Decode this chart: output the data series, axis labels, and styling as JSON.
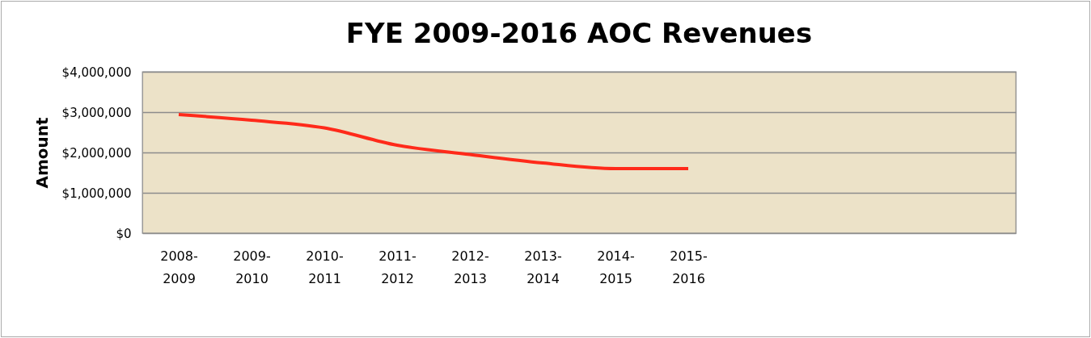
{
  "chart_data": {
    "type": "line",
    "title": "FYE 2009-2016 AOC Revenues",
    "ylabel": "Amount",
    "categories": [
      "2008-2009",
      "2009-2010",
      "2010-2011",
      "2011-2012",
      "2012-2013",
      "2013-2014",
      "2014-2015",
      "2015-2016",
      null,
      null,
      null,
      null
    ],
    "series": [
      {
        "color": "#ff2a1a",
        "values": [
          2940000,
          2800000,
          2610000,
          2180000,
          1950000,
          1740000,
          1600000,
          1600000,
          null,
          null,
          null,
          null
        ]
      }
    ],
    "ylim": [
      0,
      4000000
    ],
    "yticks": [
      {
        "value": 0,
        "label": "$0"
      },
      {
        "value": 1000000,
        "label": "$1,000,000"
      },
      {
        "value": 2000000,
        "label": "$2,000,000"
      },
      {
        "value": 3000000,
        "label": "$3,000,000"
      },
      {
        "value": 4000000,
        "label": "$4,000,000"
      }
    ],
    "grid": "y",
    "marker": "none",
    "line_style": "solid"
  }
}
